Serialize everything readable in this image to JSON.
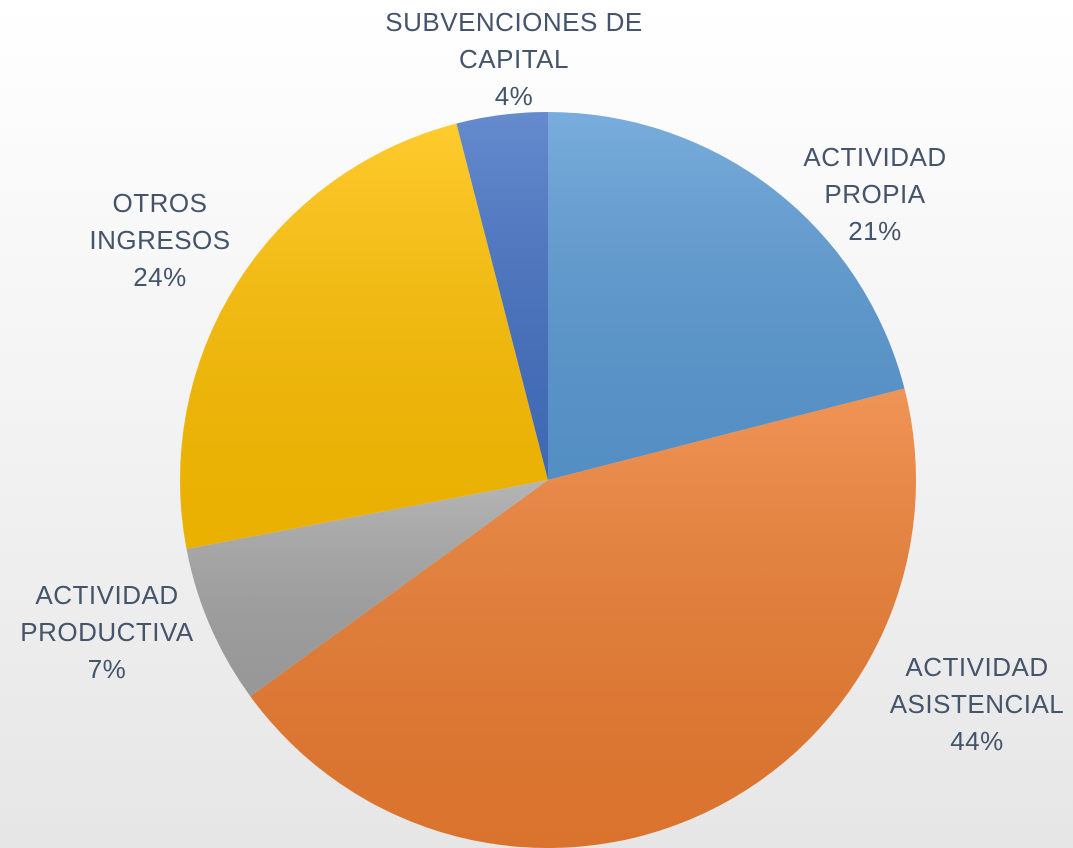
{
  "chart_data": {
    "type": "pie",
    "categories": [
      "ACTIVIDAD PROPIA",
      "ACTIVIDAD ASISTENCIAL",
      "ACTIVIDAD PRODUCTIVA",
      "OTROS INGRESOS",
      "SUBVENCIONES DE CAPITAL"
    ],
    "values": [
      21,
      44,
      7,
      24,
      4
    ],
    "value_labels": [
      "21%",
      "44%",
      "7%",
      "24%",
      "4%"
    ],
    "colors": [
      "#5b9bd5",
      "#ed7d31",
      "#a5a5a5",
      "#ffc000",
      "#4472c4"
    ]
  }
}
